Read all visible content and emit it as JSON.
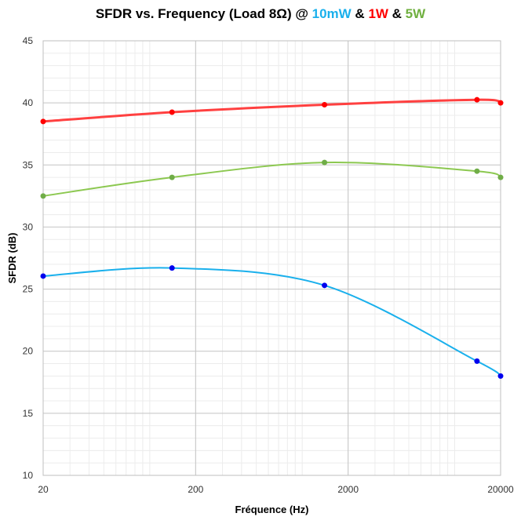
{
  "chart_data": {
    "type": "line",
    "title": {
      "prefix": "SFDR vs. Frequency (Load  8Ω) @ ",
      "parts": [
        {
          "text": "10mW",
          "color": "#1ab0ec"
        },
        {
          "text": " & ",
          "color": "#000000"
        },
        {
          "text": "1W",
          "color": "#ff0000"
        },
        {
          "text": " & ",
          "color": "#000000"
        },
        {
          "text": "5W",
          "color": "#70b040"
        }
      ]
    },
    "xlabel": "Fréquence (Hz)",
    "ylabel": "SFDR (dB)",
    "x_scale": "log",
    "xlim": [
      20,
      20000
    ],
    "ylim": [
      10,
      45
    ],
    "x_ticks": [
      "20",
      "200",
      "2000",
      "20000"
    ],
    "y_ticks": [
      "10",
      "15",
      "20",
      "25",
      "30",
      "35",
      "40",
      "45"
    ],
    "grid": true,
    "series": [
      {
        "line_color": "#ff4040",
        "marker_color": "#ff0000",
        "x": [
          20,
          140,
          1400,
          14000,
          20000
        ],
        "y": [
          38.5,
          39.25,
          39.85,
          40.25,
          40.0
        ]
      },
      {
        "line_color": "#8cc850",
        "marker_color": "#70ad47",
        "x": [
          20,
          140,
          1400,
          14000,
          20000
        ],
        "y": [
          32.5,
          34.0,
          35.2,
          34.5,
          34.0
        ]
      },
      {
        "line_color": "#1ab0ec",
        "marker_color": "#0000ee",
        "x": [
          20,
          140,
          1400,
          14000,
          20000
        ],
        "y": [
          26.05,
          26.7,
          25.3,
          19.2,
          18.0
        ]
      }
    ]
  }
}
